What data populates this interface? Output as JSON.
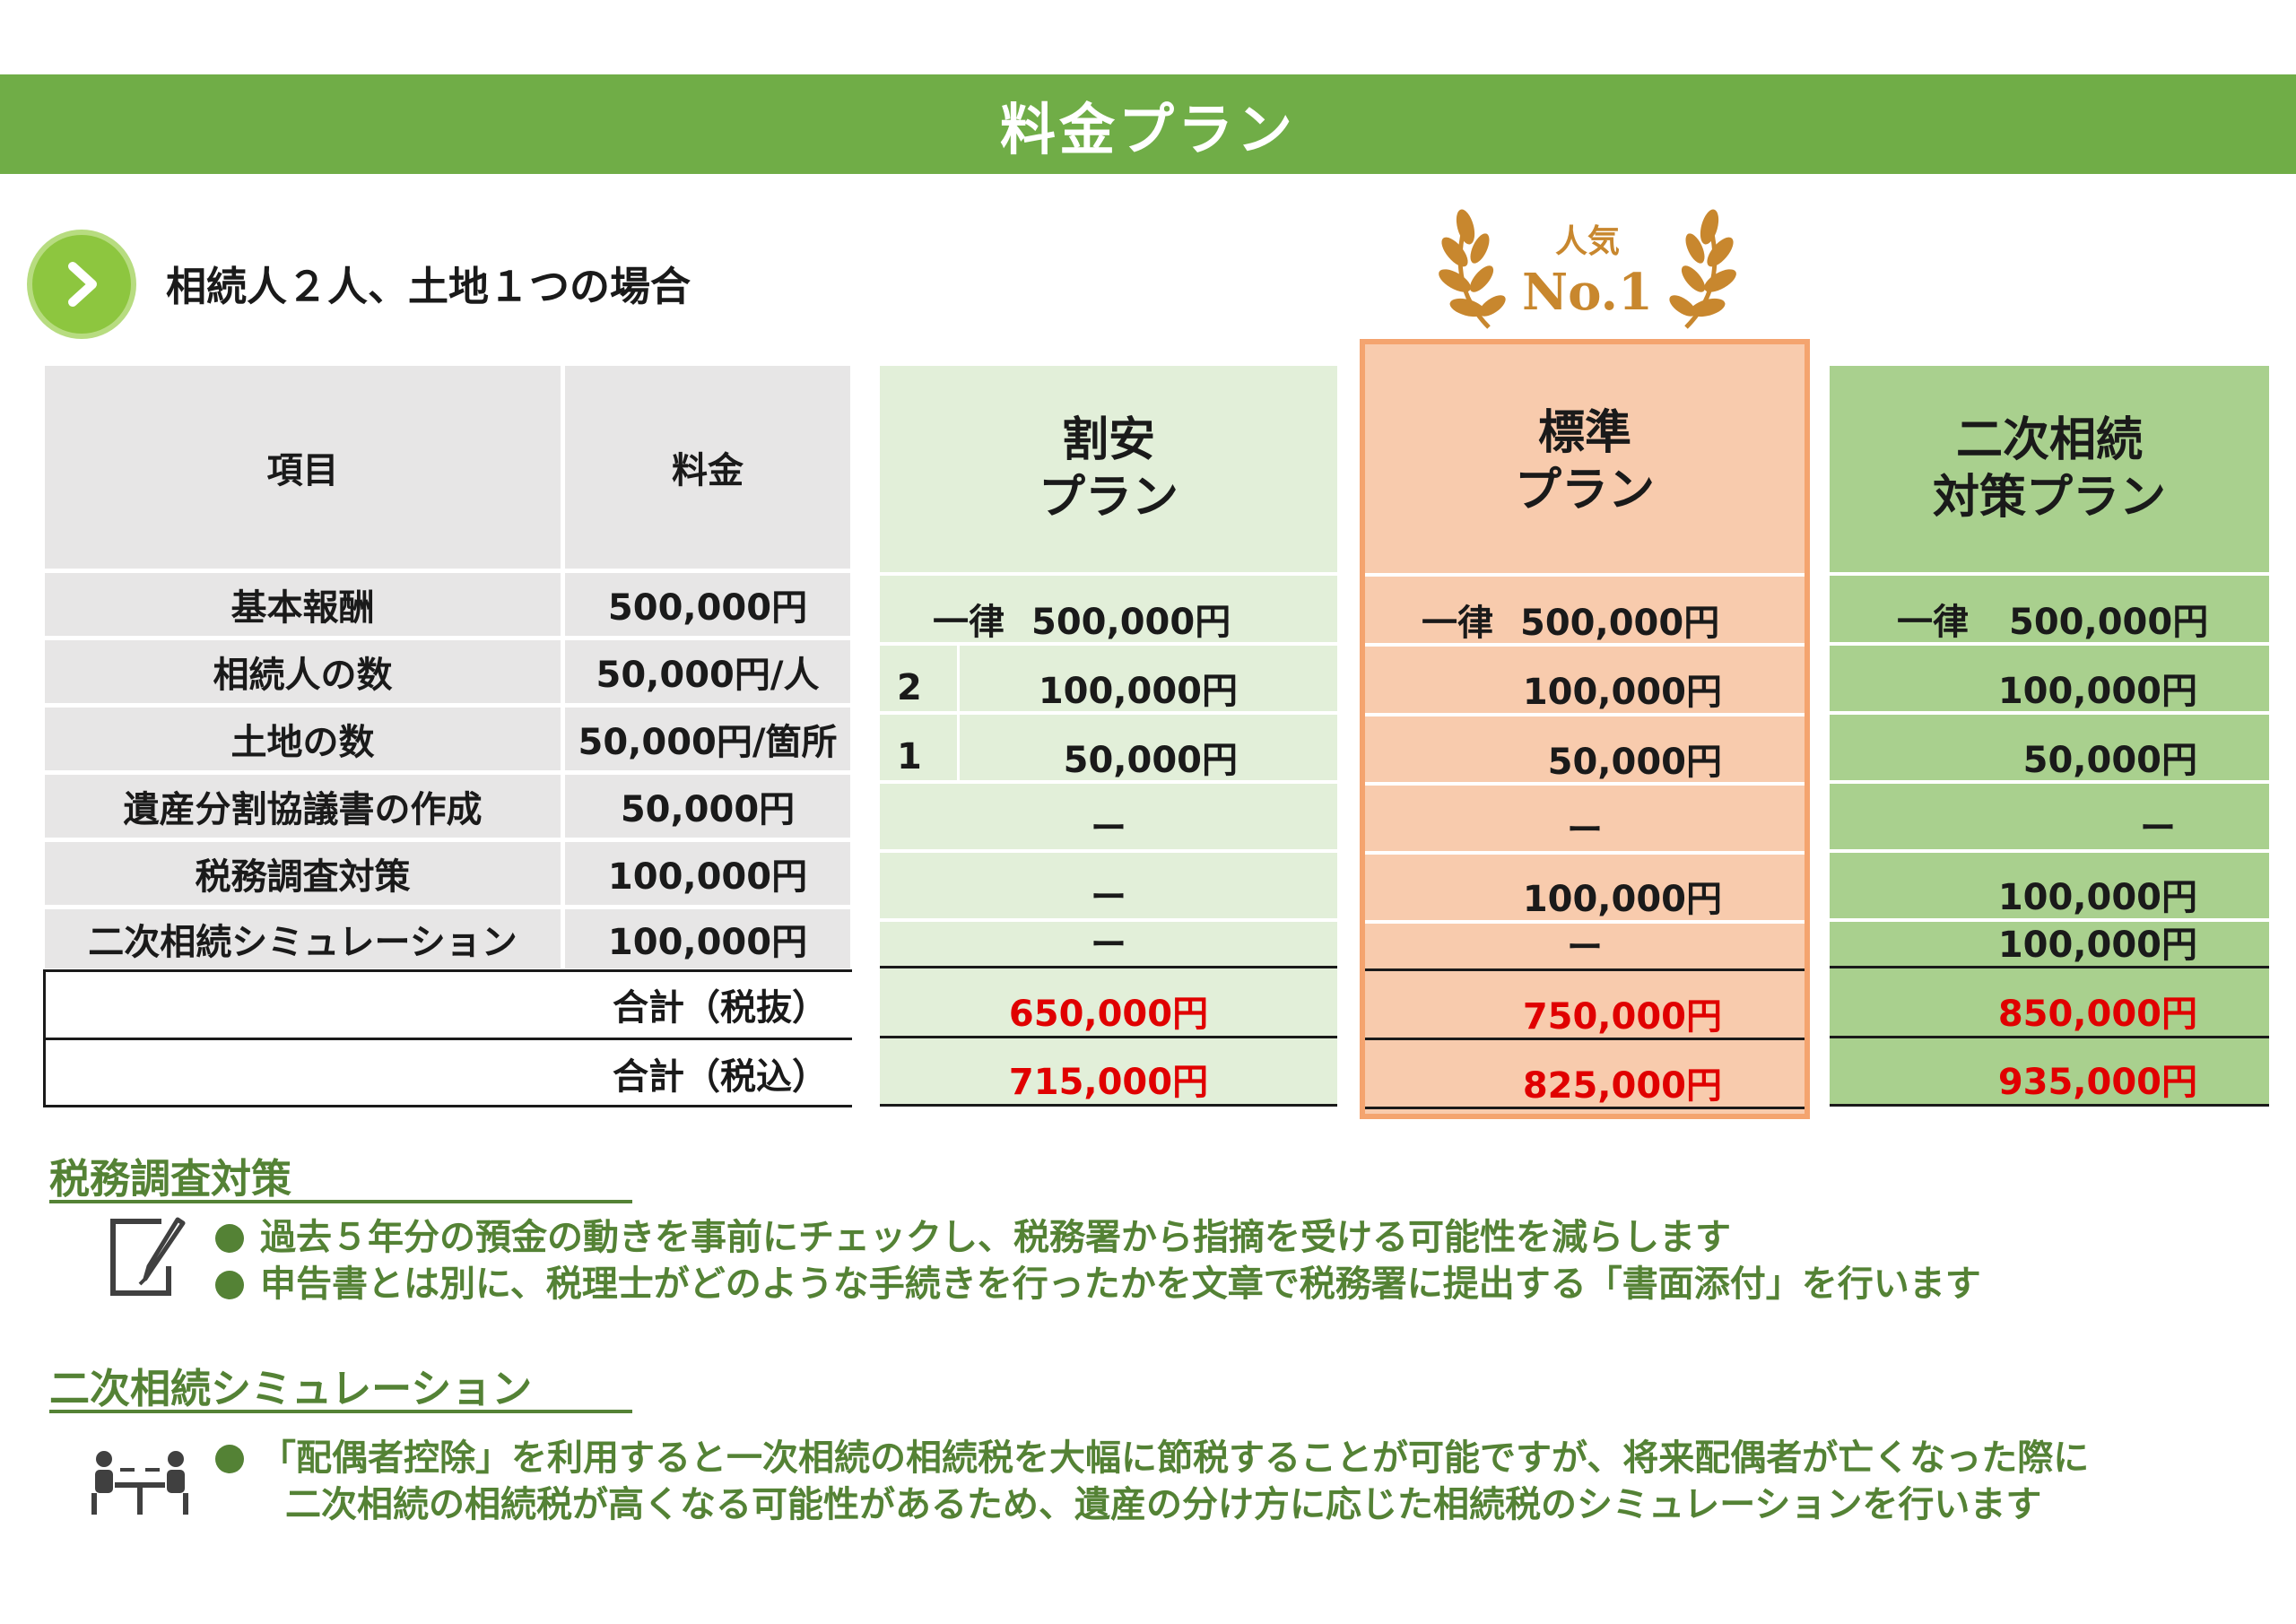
{
  "header": {
    "title": "料金プラン"
  },
  "case_label": "相続人２人、土地１つの場合",
  "badge": {
    "top": "人気",
    "bottom": "No.1"
  },
  "table": {
    "col_item": "項目",
    "col_fee": "料金",
    "rows": [
      {
        "item": "基本報酬",
        "fee": "500,000円"
      },
      {
        "item": "相続人の数",
        "fee": "50,000円/人"
      },
      {
        "item": "土地の数",
        "fee": "50,000円/箇所"
      },
      {
        "item": "遺産分割協議書の作成",
        "fee": "50,000円"
      },
      {
        "item": "税務調査対策",
        "fee": "100,000円"
      },
      {
        "item": "二次相続シミュレーション",
        "fee": "100,000円"
      }
    ],
    "total_ex": "合計（税抜）",
    "total_in": "合計（税込）"
  },
  "plans": {
    "budget": {
      "title_1": "割安",
      "title_2": "プラン",
      "uniform": "一律",
      "base": "500,000円",
      "heirs_count": "2",
      "heirs": "100,000円",
      "land_count": "1",
      "land": "50,000円",
      "division": "ー",
      "audit": "ー",
      "simulation": "ー",
      "total_ex": "650,000円",
      "total_in": "715,000円"
    },
    "standard": {
      "title_1": "標準",
      "title_2": "プラン",
      "uniform": "一律",
      "base": "500,000円",
      "heirs": "100,000円",
      "land": "50,000円",
      "division": "ー",
      "audit": "100,000円",
      "simulation": "ー",
      "total_ex": "750,000円",
      "total_in": "825,000円"
    },
    "secondary": {
      "title_1": "二次相続",
      "title_2": "対策プラン",
      "uniform": "一律",
      "base": "500,000円",
      "heirs": "100,000円",
      "land": "50,000円",
      "division": "ー",
      "audit": "100,000円",
      "simulation": "100,000円",
      "total_ex": "850,000円",
      "total_in": "935,000円"
    }
  },
  "sections": {
    "audit": {
      "title": "税務調査対策",
      "bullets": [
        "過去５年分の預金の動きを事前にチェックし、税務署から指摘を受ける可能性を減らします",
        "申告書とは別に、税理士がどのような手続きを行ったかを文章で税務署に提出する「書面添付」を行います"
      ]
    },
    "simulation": {
      "title": "二次相続シミュレーション",
      "line1": "「配偶者控除」を利用すると一次相続の相続税を大幅に節税することが可能ですが、将来配偶者が亡くなった際に",
      "line2": "二次相続の相続税が高くなる可能性があるため、遺産の分け方に応じた相続税のシミュレーションを行います"
    }
  },
  "colors": {
    "banner": "#70ad47",
    "accent": "#548235",
    "peach": "#f8cbad",
    "light_green": "#e2efd9",
    "mid_green": "#a9d08e",
    "total_red": "#e00000",
    "gold": "#c8872e"
  },
  "icons": {
    "case": "chevron-right-icon",
    "badge": "laurel-wreath-icon",
    "audit": "document-pen-icon",
    "simulation": "meeting-icon"
  }
}
